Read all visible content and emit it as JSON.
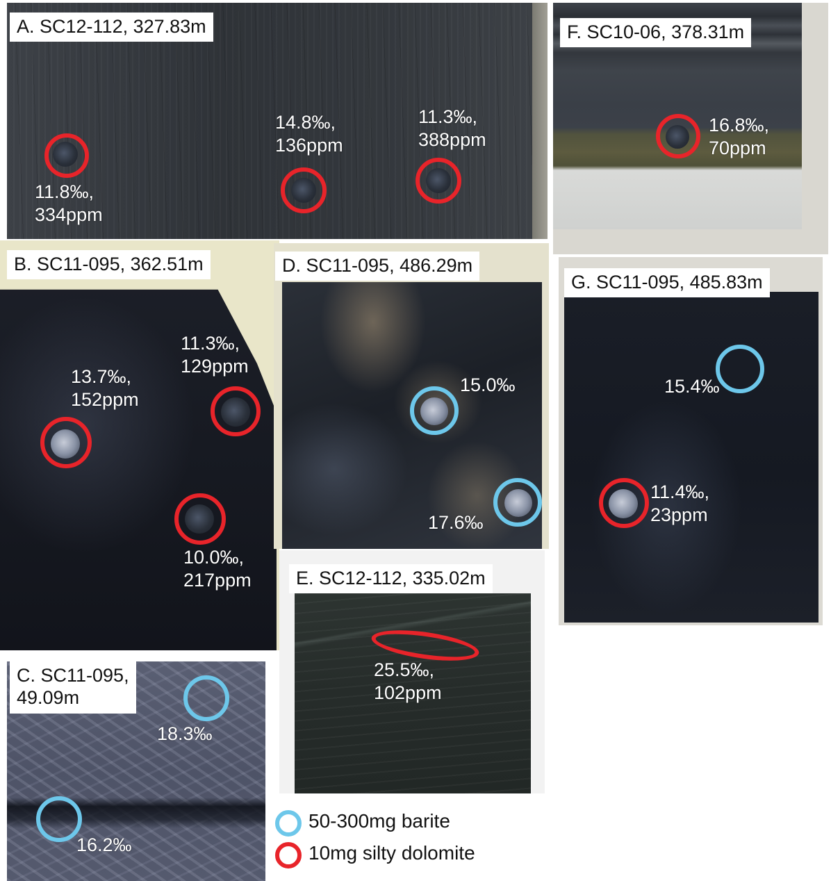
{
  "colors": {
    "silty_dolomite_ring": "#e8242a",
    "barite_ring": "#6dc7ea"
  },
  "panels": {
    "A": {
      "title": "A. SC12-112, 327.83m",
      "samples": [
        {
          "label_line1": "11.8‰,",
          "label_line2": "334ppm",
          "type": "silty-dolomite"
        },
        {
          "label_line1": "14.8‰,",
          "label_line2": "136ppm",
          "type": "silty-dolomite"
        },
        {
          "label_line1": "11.3‰,",
          "label_line2": "388ppm",
          "type": "silty-dolomite"
        }
      ]
    },
    "B": {
      "title": "B. SC11-095, 362.51m",
      "samples": [
        {
          "label_line1": "13.7‰,",
          "label_line2": "152ppm",
          "type": "silty-dolomite"
        },
        {
          "label_line1": "11.3‰,",
          "label_line2": "129ppm",
          "type": "silty-dolomite"
        },
        {
          "label_line1": "10.0‰,",
          "label_line2": "217ppm",
          "type": "silty-dolomite"
        }
      ]
    },
    "C": {
      "title_line1": "C. SC11-095,",
      "title_line2": "49.09m",
      "samples": [
        {
          "label_line1": "18.3‰",
          "type": "barite"
        },
        {
          "label_line1": "16.2‰",
          "type": "barite"
        }
      ]
    },
    "D": {
      "title": "D. SC11-095, 486.29m",
      "samples": [
        {
          "label_line1": "15.0‰",
          "type": "barite"
        },
        {
          "label_line1": "17.6‰",
          "type": "barite"
        }
      ]
    },
    "E": {
      "title": "E. SC12-112, 335.02m",
      "samples": [
        {
          "label_line1": "25.5‰,",
          "label_line2": "102ppm",
          "type": "silty-dolomite"
        }
      ]
    },
    "F": {
      "title": "F. SC10-06, 378.31m",
      "samples": [
        {
          "label_line1": "16.8‰,",
          "label_line2": "70ppm",
          "type": "silty-dolomite"
        }
      ]
    },
    "G": {
      "title": "G. SC11-095, 485.83m",
      "samples": [
        {
          "label_line1": "15.4‰",
          "type": "barite"
        },
        {
          "label_line1": "11.4‰,",
          "label_line2": "23ppm",
          "type": "silty-dolomite"
        }
      ]
    }
  },
  "legend": {
    "barite": "50-300mg barite",
    "silty_dolomite": "10mg silty dolomite"
  }
}
